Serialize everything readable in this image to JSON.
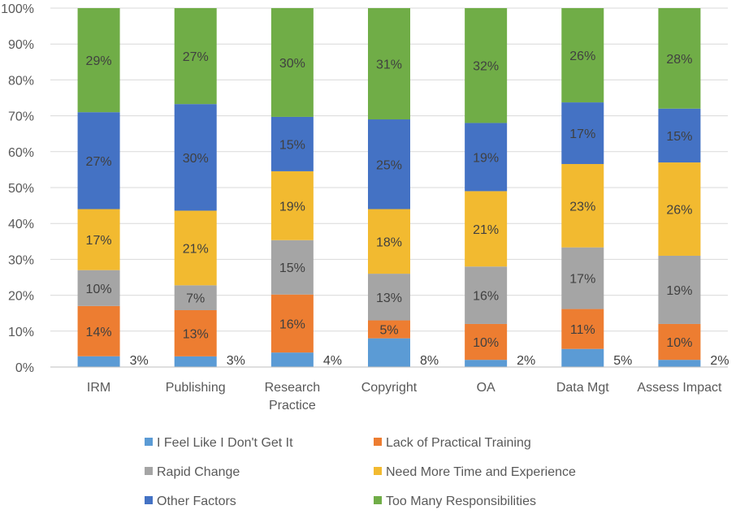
{
  "chart_data": {
    "type": "bar",
    "stacked": true,
    "percent_stacked": true,
    "categories": [
      "IRM",
      "Publishing",
      "Research Practice",
      "Copyright",
      "OA",
      "Data Mgt",
      "Assess Impact"
    ],
    "series": [
      {
        "name": "I Feel Like I Don't Get It",
        "color": "#5B9BD5",
        "values": [
          3,
          3,
          4,
          8,
          2,
          5,
          2
        ]
      },
      {
        "name": "Lack of Practical Training",
        "color": "#ED7D31",
        "values": [
          14,
          13,
          16,
          5,
          10,
          11,
          10
        ]
      },
      {
        "name": "Rapid Change",
        "color": "#A5A5A5",
        "values": [
          10,
          7,
          15,
          13,
          16,
          17,
          19
        ]
      },
      {
        "name": "Need More Time and Experience",
        "color": "#F2BA30",
        "values": [
          17,
          21,
          19,
          18,
          21,
          23,
          26
        ]
      },
      {
        "name": "Other Factors",
        "color": "#4472C4",
        "values": [
          27,
          30,
          15,
          25,
          19,
          17,
          15
        ]
      },
      {
        "name": "Too Many Responsibilities",
        "color": "#70AD47",
        "values": [
          29,
          27,
          30,
          31,
          32,
          26,
          28
        ]
      }
    ],
    "value_suffix": "%",
    "ylim": [
      0,
      100
    ],
    "yticks": [
      "0%",
      "10%",
      "20%",
      "30%",
      "40%",
      "50%",
      "60%",
      "70%",
      "80%",
      "90%",
      "100%"
    ],
    "grid": true,
    "legend": "bottom",
    "title": "",
    "xlabel": "",
    "ylabel": ""
  }
}
